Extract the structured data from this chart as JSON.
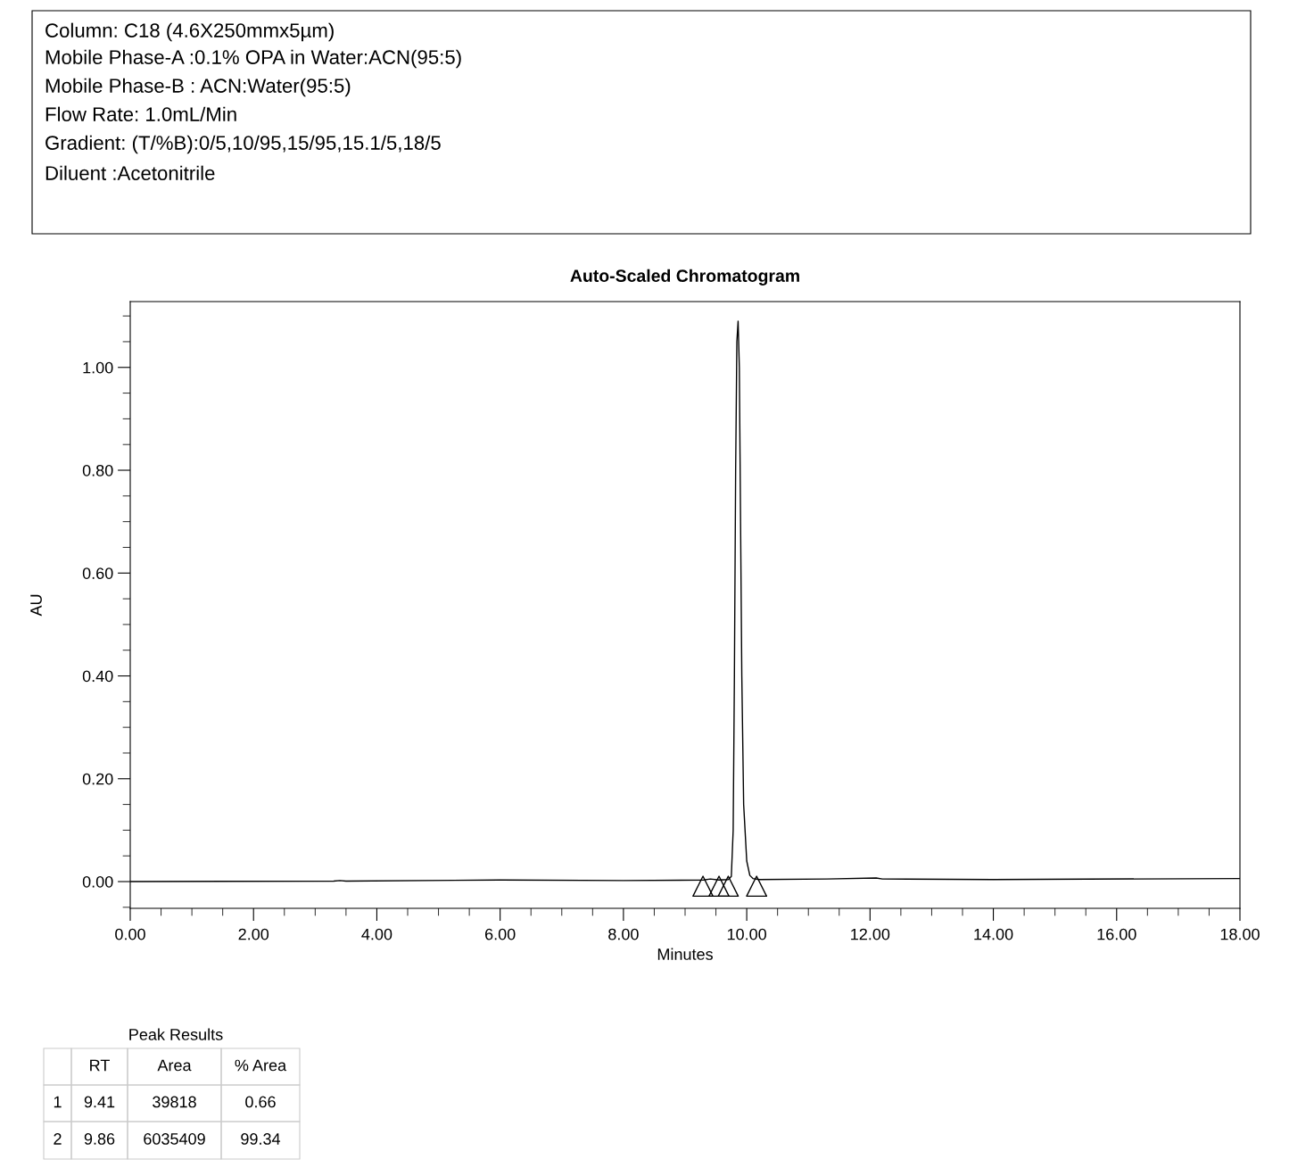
{
  "chart_data": {
    "type": "line",
    "title": "Auto-Scaled Chromatogram",
    "xlabel": "Minutes",
    "ylabel": "AU",
    "annotations": [
      "Column: C18 (4.6X250mmx5µm)",
      "Mobile Phase-A :0.1% OPA in Water:ACN(95:5)",
      "Mobile Phase-B : ACN:Water(95:5)",
      "Flow Rate: 1.0mL/Min",
      "Gradient: (T/%B):0/5,10/95,15/95,15.1/5,18/5",
      "Diluent :Acetonitrile",
      "Peak Results",
      "RT",
      "Area",
      "% Area",
      "1",
      "9.41",
      "39818",
      "0.66",
      "2",
      "9.86",
      "6035409",
      "99.34"
    ],
    "series": [
      {
        "color": "#000000",
        "x": [
          0,
          3.3,
          3.4,
          3.5,
          6,
          8,
          9.3,
          9.41,
          9.55,
          9.7,
          9.75,
          9.78,
          9.8,
          9.82,
          9.84,
          9.86,
          9.88,
          9.9,
          9.92,
          9.95,
          10.0,
          10.05,
          10.1,
          10.2,
          11.3,
          12.1,
          12.2,
          14,
          18
        ],
        "values": [
          0,
          0.001,
          0.002,
          0.001,
          0.003,
          0.002,
          0.003,
          0.005,
          0.003,
          0.004,
          0.01,
          0.1,
          0.4,
          0.8,
          1.05,
          1.09,
          1.0,
          0.7,
          0.4,
          0.15,
          0.04,
          0.012,
          0.006,
          0.004,
          0.005,
          0.007,
          0.005,
          0.004,
          0.006
        ]
      },
      {
        "type": "scatter",
        "marker": "triangle",
        "color": "#000000",
        "x": [
          9.29,
          9.55,
          9.7,
          10.16
        ],
        "values": [
          -0.009,
          -0.009,
          -0.009,
          -0.009
        ]
      }
    ],
    "xlim": [
      0,
      18
    ],
    "ylim": [
      -0.052,
      1.128
    ],
    "xticks": [
      {
        "value": 0,
        "label": "0.00"
      },
      {
        "value": 0.5,
        "label": null
      },
      {
        "value": 1,
        "label": null
      },
      {
        "value": 1.5,
        "label": null
      },
      {
        "value": 2,
        "label": "2.00"
      },
      {
        "value": 2.5,
        "label": null
      },
      {
        "value": 3,
        "label": null
      },
      {
        "value": 3.5,
        "label": null
      },
      {
        "value": 4,
        "label": "4.00"
      },
      {
        "value": 4.5,
        "label": null
      },
      {
        "value": 5,
        "label": null
      },
      {
        "value": 5.5,
        "label": null
      },
      {
        "value": 6,
        "label": "6.00"
      },
      {
        "value": 6.5,
        "label": null
      },
      {
        "value": 7,
        "label": null
      },
      {
        "value": 7.5,
        "label": null
      },
      {
        "value": 8,
        "label": "8.00"
      },
      {
        "value": 8.5,
        "label": null
      },
      {
        "value": 9,
        "label": null
      },
      {
        "value": 9.5,
        "label": null
      },
      {
        "value": 10,
        "label": "10.00"
      },
      {
        "value": 10.5,
        "label": null
      },
      {
        "value": 11,
        "label": null
      },
      {
        "value": 11.5,
        "label": null
      },
      {
        "value": 12,
        "label": "12.00"
      },
      {
        "value": 12.5,
        "label": null
      },
      {
        "value": 13,
        "label": null
      },
      {
        "value": 13.5,
        "label": null
      },
      {
        "value": 14,
        "label": "14.00"
      },
      {
        "value": 14.5,
        "label": null
      },
      {
        "value": 15,
        "label": null
      },
      {
        "value": 15.5,
        "label": null
      },
      {
        "value": 16,
        "label": "16.00"
      },
      {
        "value": 16.5,
        "label": null
      },
      {
        "value": 17,
        "label": null
      },
      {
        "value": 17.5,
        "label": null
      },
      {
        "value": 18,
        "label": "18.00"
      }
    ],
    "yticks": [
      {
        "value": -0.05,
        "label": null
      },
      {
        "value": 0,
        "label": "0.00"
      },
      {
        "value": 0.05,
        "label": null
      },
      {
        "value": 0.1,
        "label": null
      },
      {
        "value": 0.15,
        "label": null
      },
      {
        "value": 0.2,
        "label": "0.20"
      },
      {
        "value": 0.25,
        "label": null
      },
      {
        "value": 0.3,
        "label": null
      },
      {
        "value": 0.35,
        "label": null
      },
      {
        "value": 0.4,
        "label": "0.40"
      },
      {
        "value": 0.45,
        "label": null
      },
      {
        "value": 0.5,
        "label": null
      },
      {
        "value": 0.55,
        "label": null
      },
      {
        "value": 0.6,
        "label": "0.60"
      },
      {
        "value": 0.65,
        "label": null
      },
      {
        "value": 0.7,
        "label": null
      },
      {
        "value": 0.75,
        "label": null
      },
      {
        "value": 0.8,
        "label": "0.80"
      },
      {
        "value": 0.85,
        "label": null
      },
      {
        "value": 0.9,
        "label": null
      },
      {
        "value": 0.95,
        "label": null
      },
      {
        "value": 1.0,
        "label": "1.00"
      },
      {
        "value": 1.05,
        "label": null
      },
      {
        "value": 1.1,
        "label": null
      }
    ],
    "grid": false,
    "legend": false
  }
}
